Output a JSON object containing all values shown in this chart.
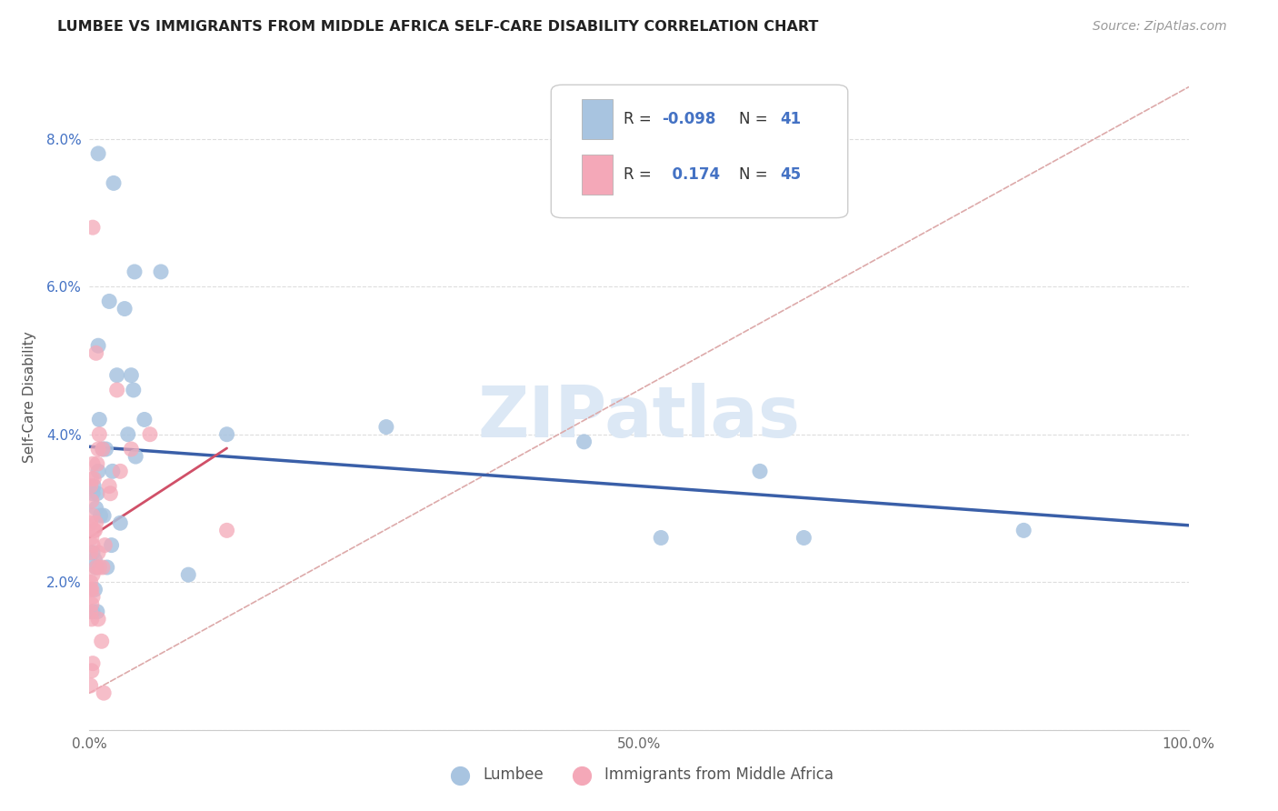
{
  "title": "LUMBEE VS IMMIGRANTS FROM MIDDLE AFRICA SELF-CARE DISABILITY CORRELATION CHART",
  "source": "Source: ZipAtlas.com",
  "ylabel": "Self-Care Disability",
  "watermark": "ZIPatlas",
  "xlim": [
    0,
    1.0
  ],
  "ylim": [
    0,
    0.09
  ],
  "xtick_positions": [
    0.0,
    0.1,
    0.2,
    0.3,
    0.4,
    0.5,
    0.6,
    0.7,
    0.8,
    0.9,
    1.0
  ],
  "xtick_labels": [
    "0.0%",
    "",
    "",
    "",
    "",
    "50.0%",
    "",
    "",
    "",
    "",
    "100.0%"
  ],
  "ytick_positions": [
    0.0,
    0.02,
    0.04,
    0.06,
    0.08
  ],
  "ytick_labels": [
    "",
    "2.0%",
    "4.0%",
    "6.0%",
    "8.0%"
  ],
  "lumbee_R": "-0.098",
  "lumbee_N": "41",
  "immigrants_R": "0.174",
  "immigrants_N": "45",
  "lumbee_color": "#a8c4e0",
  "immigrants_color": "#f4a8b8",
  "lumbee_line_color": "#3a5fa8",
  "immigrants_line_color": "#d05068",
  "ref_line_color": "#ddaaaa",
  "lumbee_x": [
    0.022,
    0.041,
    0.008,
    0.018,
    0.032,
    0.025,
    0.038,
    0.035,
    0.012,
    0.015,
    0.042,
    0.065,
    0.009,
    0.021,
    0.008,
    0.004,
    0.003,
    0.007,
    0.006,
    0.013,
    0.01,
    0.028,
    0.04,
    0.05,
    0.016,
    0.02,
    0.003,
    0.005,
    0.125,
    0.27,
    0.45,
    0.52,
    0.61,
    0.65,
    0.85,
    0.005,
    0.003,
    0.007,
    0.006,
    0.09,
    0.008
  ],
  "lumbee_y": [
    0.074,
    0.062,
    0.052,
    0.058,
    0.057,
    0.048,
    0.048,
    0.04,
    0.038,
    0.038,
    0.037,
    0.062,
    0.042,
    0.035,
    0.035,
    0.033,
    0.032,
    0.032,
    0.03,
    0.029,
    0.029,
    0.028,
    0.046,
    0.042,
    0.022,
    0.025,
    0.024,
    0.023,
    0.04,
    0.041,
    0.039,
    0.026,
    0.035,
    0.026,
    0.027,
    0.019,
    0.016,
    0.016,
    0.022,
    0.021,
    0.078
  ],
  "immigrants_x": [
    0.003,
    0.006,
    0.009,
    0.012,
    0.018,
    0.025,
    0.008,
    0.003,
    0.002,
    0.004,
    0.001,
    0.002,
    0.003,
    0.001,
    0.006,
    0.005,
    0.004,
    0.002,
    0.003,
    0.001,
    0.008,
    0.012,
    0.028,
    0.038,
    0.055,
    0.003,
    0.001,
    0.002,
    0.001,
    0.003,
    0.002,
    0.001,
    0.002,
    0.014,
    0.007,
    0.019,
    0.006,
    0.009,
    0.011,
    0.003,
    0.002,
    0.001,
    0.008,
    0.125,
    0.013
  ],
  "immigrants_y": [
    0.068,
    0.051,
    0.04,
    0.038,
    0.033,
    0.046,
    0.038,
    0.036,
    0.034,
    0.034,
    0.033,
    0.031,
    0.029,
    0.028,
    0.028,
    0.027,
    0.027,
    0.026,
    0.025,
    0.024,
    0.024,
    0.022,
    0.035,
    0.038,
    0.04,
    0.021,
    0.02,
    0.019,
    0.019,
    0.018,
    0.017,
    0.016,
    0.015,
    0.025,
    0.036,
    0.032,
    0.022,
    0.022,
    0.012,
    0.009,
    0.008,
    0.006,
    0.015,
    0.027,
    0.005
  ],
  "lumbee_line_x0": 0.0,
  "lumbee_line_x1": 1.0,
  "immigrants_line_x0": 0.0,
  "immigrants_line_x1": 0.125
}
